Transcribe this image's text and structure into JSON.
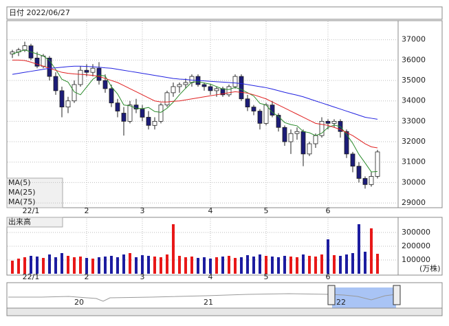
{
  "header": {
    "date_label": "日付 2022/06/27"
  },
  "navigator": {
    "labels": [
      "20",
      "21",
      "22"
    ]
  },
  "chart_data": [
    {
      "type": "candlestick",
      "categories": [
        null,
        null,
        null,
        "22/1",
        null,
        null,
        null,
        null,
        null,
        null,
        null,
        null,
        "2",
        null,
        null,
        null,
        null,
        null,
        null,
        null,
        null,
        "3",
        null,
        null,
        null,
        null,
        null,
        null,
        null,
        null,
        null,
        null,
        "4",
        null,
        null,
        null,
        null,
        null,
        null,
        null,
        null,
        "5",
        null,
        null,
        null,
        null,
        null,
        null,
        null,
        null,
        null,
        "6",
        null,
        null,
        null,
        null,
        null,
        null,
        null,
        null
      ],
      "open": [
        36300,
        36400,
        36500,
        36700,
        36100,
        35700,
        36100,
        35200,
        34500,
        33700,
        34000,
        34800,
        35500,
        35400,
        35600,
        35000,
        34600,
        33900,
        33400,
        33000,
        33800,
        33600,
        33200,
        32800,
        33000,
        33800,
        34400,
        34700,
        34800,
        34900,
        35200,
        34800,
        34700,
        34500,
        34600,
        34300,
        34700,
        35200,
        34100,
        33700,
        33500,
        32900,
        33800,
        33300,
        32700,
        32000,
        32400,
        32500,
        31400,
        31900,
        32300,
        33000,
        32900,
        33000,
        32500,
        31400,
        30800,
        30200,
        29900,
        30300
      ],
      "high": [
        36500,
        36600,
        36900,
        36800,
        36400,
        36300,
        36200,
        35400,
        34700,
        34200,
        35000,
        35700,
        35800,
        35800,
        35900,
        35300,
        34800,
        34100,
        33700,
        34000,
        34100,
        33800,
        33500,
        33200,
        33900,
        34500,
        34900,
        34900,
        35100,
        35300,
        35300,
        34900,
        34800,
        34700,
        34700,
        34800,
        35300,
        35300,
        34300,
        33800,
        33600,
        33900,
        34000,
        33400,
        32800,
        32600,
        32700,
        32600,
        32000,
        32400,
        33200,
        33100,
        33100,
        33100,
        32600,
        31500,
        31000,
        30300,
        30500,
        31600
      ],
      "low": [
        36100,
        36200,
        36400,
        36000,
        35600,
        35600,
        35000,
        34300,
        33200,
        33400,
        33900,
        34700,
        35200,
        35200,
        34800,
        34400,
        33700,
        33200,
        32300,
        32900,
        33400,
        33000,
        32600,
        32600,
        32900,
        33700,
        34200,
        34400,
        34600,
        34700,
        34700,
        34500,
        34300,
        34200,
        34200,
        34200,
        34600,
        34000,
        33500,
        33300,
        32600,
        32800,
        33200,
        32500,
        31800,
        31400,
        32100,
        30800,
        31300,
        31700,
        32200,
        32600,
        32700,
        32200,
        31200,
        30500,
        30000,
        29700,
        29800,
        30200
      ],
      "close": [
        36400,
        36500,
        36700,
        36100,
        35700,
        36200,
        35200,
        34500,
        33700,
        34000,
        34800,
        35500,
        35400,
        35600,
        35000,
        34600,
        33900,
        33500,
        33000,
        33800,
        33600,
        33200,
        32800,
        33000,
        33800,
        34400,
        34700,
        34800,
        34900,
        35200,
        34800,
        34700,
        34500,
        34600,
        34300,
        34700,
        35200,
        34100,
        33700,
        33500,
        32900,
        33800,
        33300,
        32700,
        32000,
        32400,
        32500,
        31400,
        31900,
        32300,
        33000,
        32900,
        33000,
        32500,
        31400,
        30800,
        30200,
        29900,
        30300,
        31500
      ],
      "up_color": "#ffffff",
      "down_color": "#1c1c78",
      "series": [
        {
          "name": "MA(5)",
          "color": "#2a8a2a",
          "values": [
            36300,
            36400,
            36500,
            36400,
            36300,
            36200,
            35980,
            35540,
            35060,
            34920,
            34440,
            34300,
            34680,
            35060,
            35260,
            35220,
            34700,
            34340,
            33800,
            33760,
            33640,
            33620,
            33680,
            33480,
            33440,
            33640,
            33940,
            34300,
            34620,
            34920,
            34940,
            34880,
            34820,
            34700,
            34580,
            34560,
            34660,
            34560,
            34400,
            34240,
            33880,
            33800,
            33440,
            33240,
            32940,
            32840,
            32780,
            32500,
            32440,
            32300,
            32420,
            32700,
            32820,
            32740,
            32360,
            31920,
            31380,
            30960,
            30520,
            30540
          ]
        },
        {
          "name": "MA(25)",
          "color": "#e02020",
          "values": [
            36000,
            36000,
            35980,
            35900,
            35800,
            35700,
            35600,
            35500,
            35400,
            35350,
            35320,
            35300,
            35280,
            35250,
            35200,
            35100,
            35000,
            34900,
            34750,
            34600,
            34450,
            34300,
            34150,
            34000,
            33950,
            33950,
            33980,
            34000,
            34050,
            34100,
            34150,
            34200,
            34250,
            34300,
            34350,
            34400,
            34450,
            34420,
            34380,
            34300,
            34200,
            34100,
            33950,
            33800,
            33650,
            33500,
            33350,
            33200,
            33050,
            32900,
            32850,
            32800,
            32700,
            32600,
            32450,
            32300,
            32100,
            31900,
            31750,
            31700
          ]
        },
        {
          "name": "MA(75)",
          "color": "#2020e0",
          "values": [
            35300,
            35350,
            35400,
            35450,
            35500,
            35550,
            35600,
            35620,
            35650,
            35680,
            35700,
            35700,
            35690,
            35670,
            35650,
            35620,
            35600,
            35550,
            35500,
            35450,
            35400,
            35350,
            35300,
            35250,
            35200,
            35150,
            35100,
            35070,
            35050,
            35020,
            35000,
            34980,
            34960,
            34940,
            34920,
            34900,
            34880,
            34850,
            34800,
            34750,
            34700,
            34650,
            34580,
            34500,
            34420,
            34350,
            34280,
            34200,
            34100,
            34000,
            33900,
            33800,
            33700,
            33600,
            33500,
            33400,
            33300,
            33200,
            33150,
            33100
          ]
        }
      ],
      "ylim": [
        28800,
        37900
      ],
      "yticks": [
        29000,
        30000,
        31000,
        32000,
        33000,
        34000,
        35000,
        36000,
        37000
      ],
      "grid": true
    },
    {
      "type": "bar",
      "title": "出来高",
      "unit_label": "(万株)",
      "categories": [
        null,
        null,
        null,
        "22/1",
        null,
        null,
        null,
        null,
        null,
        null,
        null,
        null,
        "2",
        null,
        null,
        null,
        null,
        null,
        null,
        null,
        null,
        "3",
        null,
        null,
        null,
        null,
        null,
        null,
        null,
        null,
        null,
        null,
        "4",
        null,
        null,
        null,
        null,
        null,
        null,
        null,
        null,
        "5",
        null,
        null,
        null,
        null,
        null,
        null,
        null,
        null,
        null,
        "6",
        null,
        null,
        null,
        null,
        null,
        null,
        null,
        null
      ],
      "values": [
        95000,
        110000,
        120000,
        130000,
        125000,
        115000,
        140000,
        120000,
        150000,
        130000,
        120000,
        125000,
        115000,
        110000,
        120000,
        125000,
        130000,
        120000,
        140000,
        150000,
        120000,
        135000,
        130000,
        125000,
        120000,
        140000,
        360000,
        130000,
        120000,
        125000,
        115000,
        120000,
        110000,
        120000,
        125000,
        130000,
        115000,
        120000,
        135000,
        125000,
        140000,
        130000,
        125000,
        120000,
        130000,
        125000,
        120000,
        140000,
        130000,
        125000,
        140000,
        250000,
        135000,
        130000,
        140000,
        150000,
        360000,
        160000,
        330000,
        145000
      ],
      "up_color": "#e81818",
      "down_color": "#1c1ca0",
      "ylim": [
        0,
        400000
      ],
      "yticks": [
        100000,
        200000,
        300000
      ],
      "grid": true
    }
  ]
}
